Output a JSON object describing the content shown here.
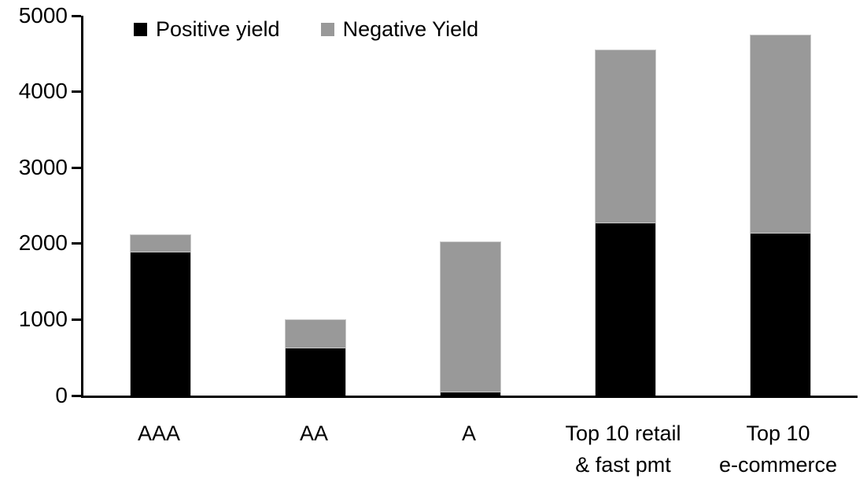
{
  "chart_data": {
    "type": "bar",
    "stacked": true,
    "title": "",
    "xlabel": "",
    "ylabel": "",
    "categories": [
      "AAA",
      "AA",
      "A",
      "Top 10 retail\n& fast pmt",
      "Top 10\ne-commerce"
    ],
    "series": [
      {
        "name": "Positive yield",
        "color": "#000000",
        "values": [
          1890,
          630,
          50,
          2280,
          2140
        ]
      },
      {
        "name": "Negative Yield",
        "color": "#999999",
        "values": [
          230,
          370,
          1980,
          2280,
          2610
        ]
      }
    ],
    "totals": [
      2120,
      1000,
      2030,
      4560,
      4750
    ],
    "ylim": [
      0,
      5000
    ],
    "yticks": [
      0,
      1000,
      2000,
      3000,
      4000,
      5000
    ],
    "grid": false,
    "legend_position": "top-left",
    "axis_color": "#000000",
    "bar_border_color": "#c9c9c9",
    "background_color": "#ffffff"
  }
}
